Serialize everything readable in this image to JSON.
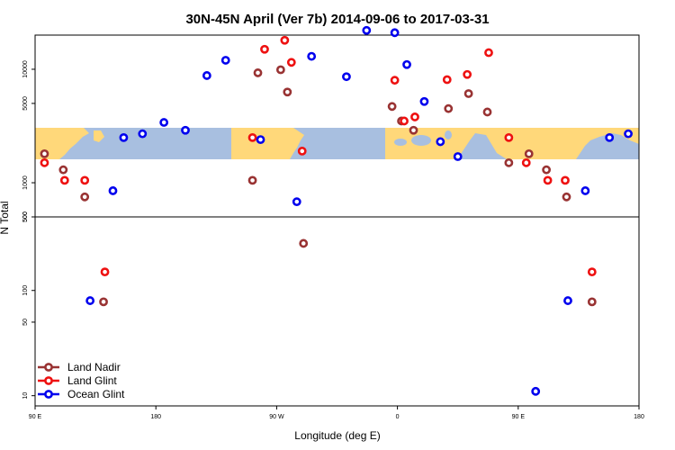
{
  "chart_data": {
    "type": "scatter",
    "title": "30N-45N April (Ver 7b)   2014-09-06 to 2017-03-31",
    "xlabel": "Longitude (deg E)",
    "ylabel": "N Total",
    "x_ticks": [
      {
        "value": 90,
        "label": "90 E"
      },
      {
        "value": 180,
        "label": "180"
      },
      {
        "value": 270,
        "label": "90 W"
      },
      {
        "value": 360,
        "label": "0"
      },
      {
        "value": 450,
        "label": "90 E"
      },
      {
        "value": 540,
        "label": "180"
      }
    ],
    "xlim": [
      90,
      540
    ],
    "upper_panel": {
      "scale": "log",
      "ylim": [
        500,
        20000
      ],
      "y_ticks": [
        "500",
        "1000",
        "5000",
        "10000"
      ]
    },
    "lower_panel": {
      "scale": "log",
      "ylim": [
        8,
        500
      ],
      "y_ticks": [
        "10",
        "50",
        "100",
        "500"
      ]
    },
    "map_band": {
      "lat_range": "30N-45N",
      "land_color": "#ffd87a",
      "ocean_color": "#a8bfe0"
    },
    "legend": {
      "position": "bottom-left"
    },
    "series": [
      {
        "name": "Land Nadir",
        "color": "#993333",
        "points": [
          {
            "x": 97,
            "y": 1800
          },
          {
            "x": 111,
            "y": 1300
          },
          {
            "x": 127,
            "y": 750
          },
          {
            "x": 141,
            "y": 78
          },
          {
            "x": 252,
            "y": 1050
          },
          {
            "x": 256,
            "y": 9300
          },
          {
            "x": 273,
            "y": 9900
          },
          {
            "x": 278,
            "y": 6300
          },
          {
            "x": 290,
            "y": 280
          },
          {
            "x": 356,
            "y": 4700
          },
          {
            "x": 363,
            "y": 3500
          },
          {
            "x": 372,
            "y": 2900
          },
          {
            "x": 398,
            "y": 4500
          },
          {
            "x": 413,
            "y": 6100
          },
          {
            "x": 427,
            "y": 4200
          },
          {
            "x": 443,
            "y": 1500
          },
          {
            "x": 458,
            "y": 1800
          },
          {
            "x": 471,
            "y": 1300
          },
          {
            "x": 486,
            "y": 750
          },
          {
            "x": 505,
            "y": 78
          }
        ]
      },
      {
        "name": "Land Glint",
        "color": "#ee1111",
        "points": [
          {
            "x": 97,
            "y": 1500
          },
          {
            "x": 112,
            "y": 1050
          },
          {
            "x": 127,
            "y": 1050
          },
          {
            "x": 142,
            "y": 150
          },
          {
            "x": 252,
            "y": 2500
          },
          {
            "x": 261,
            "y": 15000
          },
          {
            "x": 276,
            "y": 18000
          },
          {
            "x": 281,
            "y": 11500
          },
          {
            "x": 289,
            "y": 1900
          },
          {
            "x": 358,
            "y": 8000
          },
          {
            "x": 365,
            "y": 3500
          },
          {
            "x": 373,
            "y": 3800
          },
          {
            "x": 397,
            "y": 8100
          },
          {
            "x": 412,
            "y": 9000
          },
          {
            "x": 428,
            "y": 14000
          },
          {
            "x": 443,
            "y": 2500
          },
          {
            "x": 456,
            "y": 1500
          },
          {
            "x": 472,
            "y": 1050
          },
          {
            "x": 485,
            "y": 1050
          },
          {
            "x": 505,
            "y": 150
          }
        ]
      },
      {
        "name": "Ocean Glint",
        "color": "#0000ee",
        "points": [
          {
            "x": 131,
            "y": 80
          },
          {
            "x": 148,
            "y": 850
          },
          {
            "x": 156,
            "y": 2500
          },
          {
            "x": 170,
            "y": 2700
          },
          {
            "x": 186,
            "y": 3400
          },
          {
            "x": 202,
            "y": 2900
          },
          {
            "x": 218,
            "y": 8800
          },
          {
            "x": 232,
            "y": 12000
          },
          {
            "x": 258,
            "y": 2400
          },
          {
            "x": 285,
            "y": 680
          },
          {
            "x": 296,
            "y": 13000
          },
          {
            "x": 322,
            "y": 8600
          },
          {
            "x": 337,
            "y": 22000
          },
          {
            "x": 358,
            "y": 21000
          },
          {
            "x": 367,
            "y": 11000
          },
          {
            "x": 380,
            "y": 5200
          },
          {
            "x": 392,
            "y": 2300
          },
          {
            "x": 405,
            "y": 1700
          },
          {
            "x": 463,
            "y": 11
          },
          {
            "x": 487,
            "y": 80
          },
          {
            "x": 500,
            "y": 850
          },
          {
            "x": 518,
            "y": 2500
          },
          {
            "x": 532,
            "y": 2700
          }
        ]
      }
    ]
  }
}
